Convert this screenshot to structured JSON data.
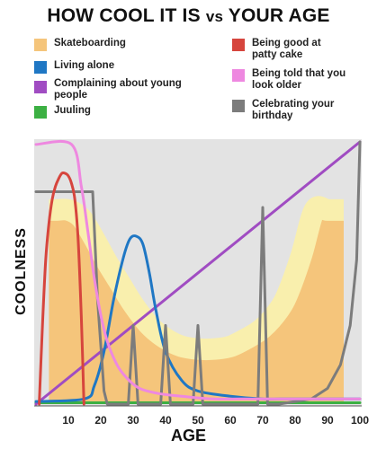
{
  "chart_data": {
    "type": "line",
    "title_main": "HOW COOL IT IS",
    "title_vs": "vs",
    "title_end": "YOUR AGE",
    "xlabel": "AGE",
    "ylabel": "COOLNESS",
    "xlim": [
      0,
      100
    ],
    "ylim": [
      0,
      100
    ],
    "xticks": [
      10,
      20,
      30,
      40,
      50,
      60,
      70,
      80,
      90,
      100
    ],
    "grid": false,
    "legend_placement": "top, two columns",
    "series": [
      {
        "name": "Skateboarding",
        "color": "#f5c57b",
        "style": "band",
        "x": [
          4,
          6,
          10,
          14,
          18,
          22,
          26,
          30,
          35,
          40,
          45,
          50,
          55,
          60,
          65,
          70,
          75,
          78,
          82,
          86,
          90,
          95
        ],
        "y": [
          74,
          74,
          74,
          71,
          63,
          54,
          46,
          38,
          30,
          25,
          22,
          21,
          21,
          22,
          25,
          29,
          36,
          43,
          57,
          74,
          74,
          74
        ]
      },
      {
        "name": "Living alone",
        "color": "#1f77c4",
        "x": [
          0,
          15,
          18,
          21,
          24,
          27,
          29,
          31,
          33,
          35,
          37,
          40,
          45,
          50,
          60,
          70,
          80,
          100
        ],
        "y": [
          1,
          2,
          7,
          20,
          40,
          56,
          63,
          64,
          61,
          50,
          36,
          20,
          9,
          5,
          3,
          2,
          2,
          2
        ]
      },
      {
        "name": "Complaining about young people",
        "color": "#a04cc2",
        "x": [
          0,
          100
        ],
        "y": [
          0,
          100
        ]
      },
      {
        "name": "Juuling",
        "color": "#3cb043",
        "x": [
          0,
          100
        ],
        "y": [
          0.5,
          0.5
        ]
      },
      {
        "name": "Being good at patty cake",
        "color": "#d6453d",
        "x": [
          1,
          2,
          3,
          4,
          5,
          6,
          7,
          8,
          9,
          10,
          11,
          12,
          13,
          14,
          14.8
        ],
        "y": [
          0,
          30,
          55,
          69,
          78,
          83,
          86,
          88,
          88,
          87,
          84,
          78,
          63,
          33,
          0
        ]
      },
      {
        "name": "Being told that you look older",
        "color": "#ee88e0",
        "x": [
          0,
          11,
          14,
          16,
          18,
          20,
          22,
          25,
          28,
          32,
          38,
          45,
          55,
          70,
          100
        ],
        "y": [
          99,
          99,
          83,
          66,
          48,
          34,
          24,
          15,
          10,
          6,
          4,
          3,
          2,
          2,
          2
        ]
      },
      {
        "name": "Celebrating your birthday",
        "color": "#7c7c7c",
        "x": [
          0,
          17,
          17.5,
          19,
          21,
          22,
          28.5,
          30,
          31.5,
          38.5,
          40,
          41.5,
          48.5,
          50,
          51.5,
          68.5,
          70,
          71.5,
          75,
          80,
          85,
          90,
          94,
          97,
          99,
          100
        ],
        "y": [
          81,
          81,
          81,
          40,
          5,
          0,
          0,
          30,
          0,
          0,
          30,
          0,
          0,
          30,
          0,
          0,
          75,
          0,
          0,
          1,
          2,
          6,
          15,
          30,
          55,
          100
        ]
      }
    ]
  }
}
